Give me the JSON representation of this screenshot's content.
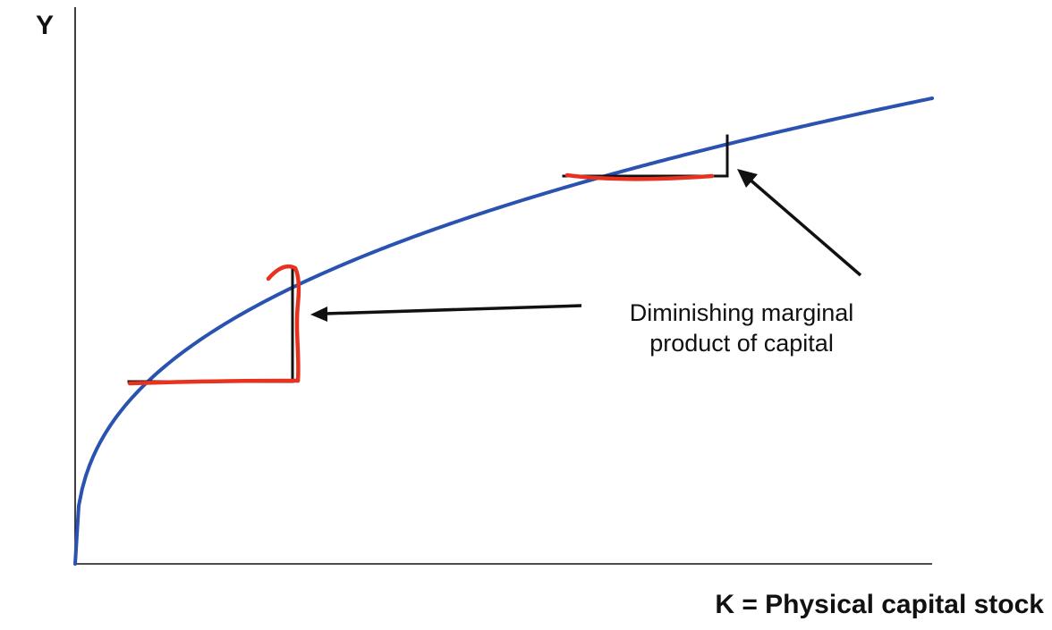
{
  "chart_data": {
    "type": "line",
    "y_axis_label": "Y",
    "x_axis_label": "K = Physical capital stock",
    "annotation": {
      "lines": [
        "Diminishing marginal",
        "product of capital"
      ]
    },
    "ticks": "none",
    "grid": false,
    "series": [
      {
        "kind": "production-function",
        "shape": "concave (diminishing returns)",
        "color": "#2a52b0"
      }
    ],
    "highlight_color": "#e8321f",
    "step_color": "#111111",
    "arrow_color": "#111111"
  }
}
